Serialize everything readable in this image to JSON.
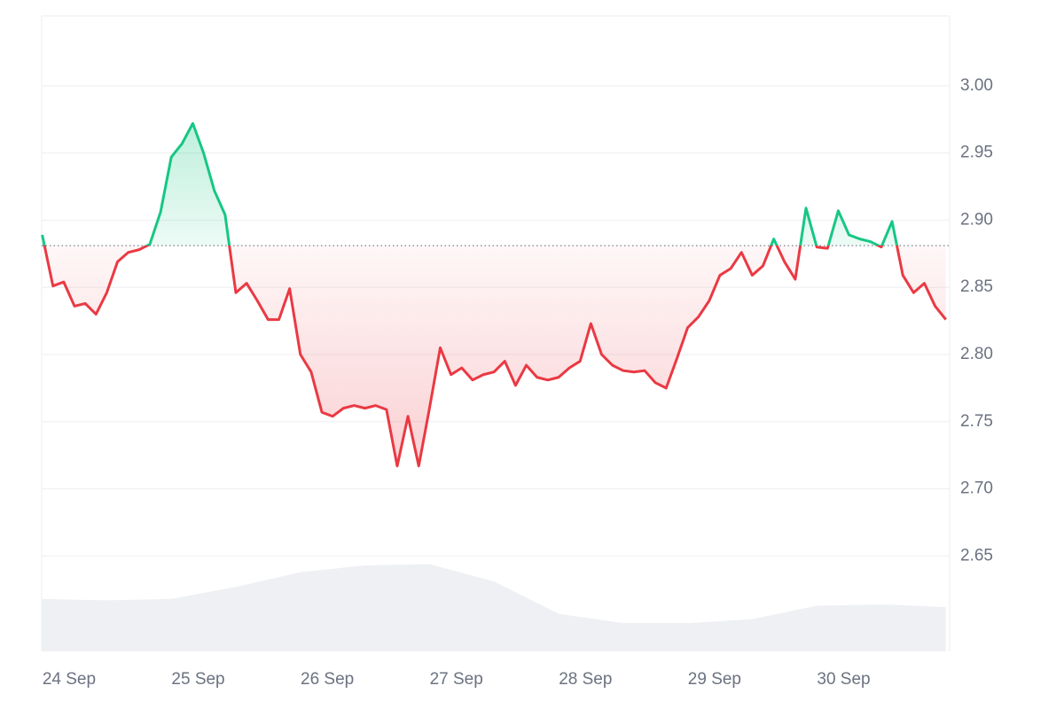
{
  "chart_data": {
    "type": "line",
    "x": [
      -5,
      -3,
      -1,
      1,
      3,
      5,
      7,
      9,
      11,
      13,
      15,
      17,
      19,
      21,
      23,
      25,
      27,
      29,
      31,
      33,
      35,
      37,
      39,
      41,
      43,
      45,
      47,
      49,
      51,
      53,
      55,
      57,
      59,
      61,
      63,
      65,
      67,
      69,
      71,
      73,
      75,
      77,
      79,
      81,
      83,
      85,
      87,
      89,
      91,
      93,
      95,
      97,
      99,
      101,
      103,
      105,
      107,
      109,
      111,
      113,
      115,
      117,
      119,
      121,
      123,
      125,
      127,
      129,
      131,
      133,
      135,
      137,
      139,
      141,
      143,
      145,
      147,
      149,
      151,
      153,
      155,
      157,
      159,
      161,
      163
    ],
    "series": [
      {
        "values": [
          2.889,
          2.851,
          2.854,
          2.836,
          2.838,
          2.83,
          2.846,
          2.869,
          2.876,
          2.878,
          2.882,
          2.906,
          2.947,
          2.957,
          2.972,
          2.95,
          2.922,
          2.904,
          2.846,
          2.853,
          2.84,
          2.826,
          2.826,
          2.849,
          2.8,
          2.787,
          2.757,
          2.754,
          2.76,
          2.762,
          2.76,
          2.762,
          2.759,
          2.717,
          2.754,
          2.717,
          2.76,
          2.805,
          2.785,
          2.79,
          2.781,
          2.785,
          2.787,
          2.795,
          2.777,
          2.792,
          2.783,
          2.781,
          2.783,
          2.79,
          2.795,
          2.823,
          2.8,
          2.792,
          2.788,
          2.787,
          2.788,
          2.779,
          2.775,
          2.797,
          2.82,
          2.828,
          2.84,
          2.859,
          2.864,
          2.876,
          2.859,
          2.866,
          2.886,
          2.869,
          2.856,
          2.909,
          2.88,
          2.879,
          2.907,
          2.889,
          2.886,
          2.884,
          2.88,
          2.899,
          2.859,
          2.846,
          2.853,
          2.836,
          2.826
        ],
        "color_up": "#16c784",
        "color_down": "#ea3943"
      }
    ],
    "baseline": 2.881,
    "volume": {
      "x": [
        -5,
        7,
        19,
        31,
        43,
        55,
        67,
        79,
        91,
        103,
        115,
        127,
        139,
        151,
        163
      ],
      "values": [
        2.618,
        2.617,
        2.618,
        2.627,
        2.638,
        2.643,
        2.644,
        2.631,
        2.607,
        2.6,
        2.6,
        2.603,
        2.613,
        2.614,
        2.612
      ],
      "color": "#eef0f3"
    },
    "xlim": [
      -5.1,
      163.7
    ],
    "ylim": [
      2.579,
      3.052
    ],
    "xticks": [
      {
        "value": 0,
        "label": "24 Sep"
      },
      {
        "value": 24,
        "label": "25 Sep"
      },
      {
        "value": 48,
        "label": "26 Sep"
      },
      {
        "value": 72,
        "label": "27 Sep"
      },
      {
        "value": 96,
        "label": "28 Sep"
      },
      {
        "value": 120,
        "label": "29 Sep"
      },
      {
        "value": 144,
        "label": "30 Sep"
      }
    ],
    "yticks": [
      2.65,
      {
        "value": 2.7,
        "label": "2.70"
      },
      2.75,
      {
        "value": 2.8,
        "label": "2.80"
      },
      2.85,
      {
        "value": 2.9,
        "label": "2.90"
      },
      2.95,
      {
        "value": 3,
        "label": "3.00"
      }
    ],
    "grid": true
  }
}
